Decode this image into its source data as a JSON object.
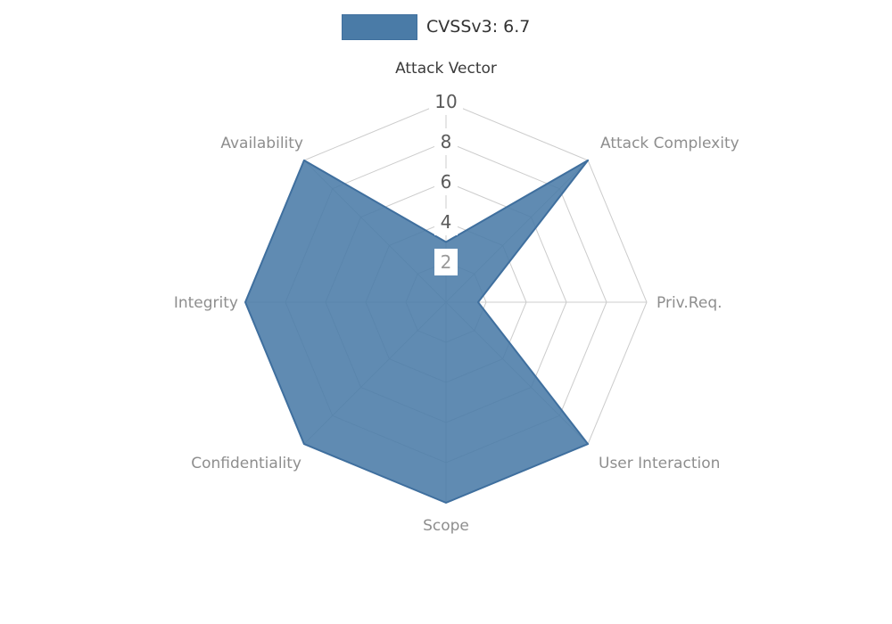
{
  "legend": {
    "label": "CVSSv3: 6.7"
  },
  "chart_data": {
    "type": "radar",
    "title": "CVSSv3: 6.7",
    "axes": [
      "Attack Vector",
      "Attack Complexity",
      "Priv.Req.",
      "User Interaction",
      "Scope",
      "Confidentiality",
      "Integrity",
      "Availability"
    ],
    "series": [
      {
        "name": "CVSSv3: 6.7",
        "values": [
          3,
          10,
          1.6,
          10,
          10,
          10,
          10,
          10
        ]
      }
    ],
    "radial_ticks": [
      2,
      4,
      6,
      8,
      10
    ],
    "range": [
      0,
      10
    ],
    "grid": true,
    "legend_position": "top-center",
    "primary_axis_index": 0,
    "colors": {
      "fill": "#4a7ba7",
      "stroke": "#3f6f9e",
      "grid": "#cccccc",
      "axis_label": "#8e8e8e",
      "axis_label_primary": "#3b3b3b",
      "tick_label": "#595959",
      "tick_label_inner": "#9a9a9a",
      "tick_box": "#ffffff",
      "background": "#ffffff",
      "legend_text": "#333333"
    }
  }
}
